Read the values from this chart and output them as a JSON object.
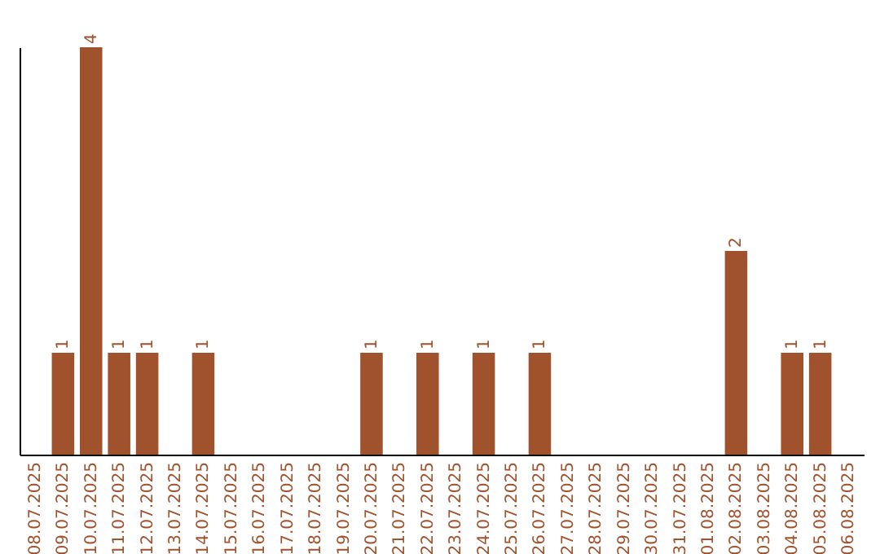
{
  "chart_data": {
    "type": "bar",
    "categories": [
      "08.07.2025",
      "09.07.2025",
      "10.07.2025",
      "11.07.2025",
      "12.07.2025",
      "13.07.2025",
      "14.07.2025",
      "15.07.2025",
      "16.07.2025",
      "17.07.2025",
      "18.07.2025",
      "19.07.2025",
      "20.07.2025",
      "21.07.2025",
      "22.07.2025",
      "23.07.2025",
      "24.07.2025",
      "25.07.2025",
      "26.07.2025",
      "27.07.2025",
      "28.07.2025",
      "29.07.2025",
      "30.07.2025",
      "31.07.2025",
      "01.08.2025",
      "02.08.2025",
      "03.08.2025",
      "04.08.2025",
      "05.08.2025",
      "06.08.2025"
    ],
    "values": [
      0,
      1,
      4,
      1,
      1,
      0,
      1,
      0,
      0,
      0,
      0,
      0,
      1,
      0,
      1,
      0,
      1,
      0,
      1,
      0,
      0,
      0,
      0,
      0,
      0,
      2,
      0,
      1,
      1,
      0
    ],
    "value_labels": [
      null,
      "1",
      "4",
      "1",
      "1",
      null,
      "1",
      null,
      null,
      null,
      null,
      null,
      "1",
      null,
      "1",
      null,
      "1",
      null,
      "1",
      null,
      null,
      null,
      null,
      null,
      null,
      "2",
      null,
      "1",
      "1",
      null
    ],
    "color": "#a0522d",
    "ylim": [
      0,
      4
    ],
    "tick_labels": "x",
    "grid": false
  }
}
